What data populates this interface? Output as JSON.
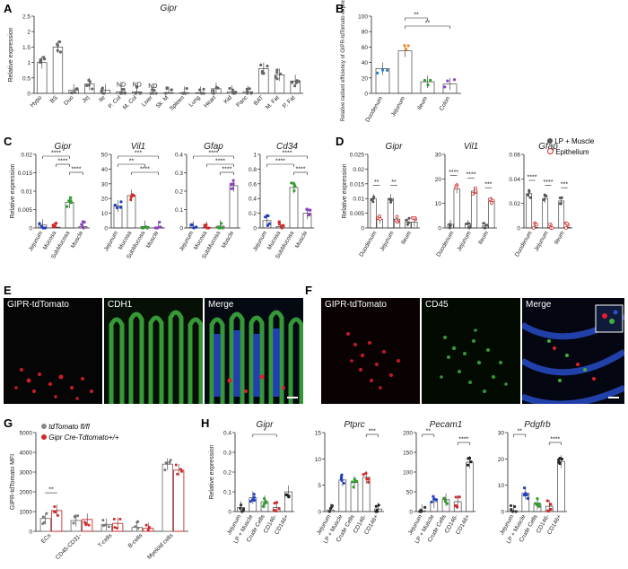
{
  "panel_letters": {
    "A": "A",
    "B": "B",
    "C": "C",
    "D": "D",
    "E": "E",
    "F": "F",
    "G": "G",
    "H": "H"
  },
  "colors": {
    "grey": "#777777",
    "blue": "#1f3fbf",
    "red": "#d42a2a",
    "green": "#2f9e2f",
    "orange": "#f08a24",
    "purple": "#8e3fbf",
    "micro_red": "#e0202a",
    "micro_green": "#3fb03f",
    "micro_blue": "#2a4fd0"
  },
  "chart_data": [
    {
      "id": "A",
      "type": "bar",
      "title": "Gipr",
      "ylabel": "Relative expression",
      "ylim": [
        0,
        2.5
      ],
      "yticks": [
        0,
        0.5,
        1.0,
        1.5,
        2.0,
        2.5
      ],
      "categories": [
        "Hypo",
        "BS",
        "Duo",
        "Jej",
        "Ile",
        "P. Col",
        "M. Col",
        "Liver",
        "Sk. M",
        "Spleen",
        "Lung",
        "Heart",
        "Kid",
        "Panc",
        "BAT",
        "M. Fat",
        "P. Fat"
      ],
      "values": [
        1.0,
        1.5,
        0.1,
        0.3,
        0.1,
        0.05,
        0.05,
        0.0,
        0.02,
        0.02,
        0.02,
        0.15,
        0.05,
        0.05,
        0.8,
        0.6,
        0.4
      ],
      "annotations": [
        {
          "category": "P. Col",
          "text": "ND"
        },
        {
          "category": "M. Col",
          "text": "ND"
        },
        {
          "category": "Liver",
          "text": "ND"
        }
      ]
    },
    {
      "id": "B",
      "type": "bar",
      "ylabel": "Relative radiant efficiency of GIPR-tdTomato expression",
      "ylim": [
        0,
        100
      ],
      "yticks": [
        0,
        20,
        40,
        60,
        80,
        100
      ],
      "categories": [
        "Duodenum",
        "Jejunum",
        "Ileum",
        "Colon"
      ],
      "values": [
        32,
        55,
        15,
        12
      ],
      "point_colors": [
        "#2a7fd4",
        "#f08a24",
        "#2f9e2f",
        "#8e3fbf"
      ],
      "significance": [
        {
          "from": "Jejunum",
          "to": "Ileum",
          "text": "**"
        },
        {
          "from": "Jejunum",
          "to": "Colon",
          "text": "**"
        }
      ]
    },
    {
      "id": "C1",
      "type": "bar",
      "title": "Gipr",
      "ylabel": "Relative expression",
      "ylim": [
        0,
        0.02
      ],
      "yticks": [
        0,
        0.005,
        0.01,
        0.015,
        0.02
      ],
      "categories": [
        "Jejunum",
        "Mucosa",
        "SubMucosa",
        "Muscle"
      ],
      "values": [
        0.0008,
        0.0002,
        0.007,
        0.0004
      ],
      "significance": [
        {
          "from": "Jejunum",
          "to": "SubMucosa",
          "text": "****"
        },
        {
          "from": "Mucosa",
          "to": "SubMucosa",
          "text": "****"
        },
        {
          "from": "SubMucosa",
          "to": "Muscle",
          "text": "****"
        }
      ]
    },
    {
      "id": "C2",
      "type": "bar",
      "title": "Vil1",
      "ylim": [
        0,
        50
      ],
      "yticks": [
        0,
        10,
        20,
        30,
        40,
        50
      ],
      "categories": [
        "Jejunum",
        "Mucosa",
        "SubMucosa",
        "Muscle"
      ],
      "values": [
        15,
        22,
        1,
        0.5
      ],
      "significance": [
        {
          "from": "Jejunum",
          "to": "Muscle",
          "text": "***"
        },
        {
          "from": "Jejunum",
          "to": "SubMucosa",
          "text": "**"
        },
        {
          "from": "Mucosa",
          "to": "Muscle",
          "text": "****"
        }
      ]
    },
    {
      "id": "C3",
      "type": "bar",
      "title": "Gfap",
      "ylim": [
        0,
        0.4
      ],
      "yticks": [
        0,
        0.1,
        0.2,
        0.3,
        0.4
      ],
      "categories": [
        "Jejunum",
        "Mucosa",
        "SubMucosa",
        "Muscle"
      ],
      "values": [
        0.005,
        0.003,
        0.01,
        0.23
      ],
      "significance": [
        {
          "from": "Jejunum",
          "to": "Muscle",
          "text": "****"
        },
        {
          "from": "Mucosa",
          "to": "Muscle",
          "text": "****"
        },
        {
          "from": "SubMucosa",
          "to": "Muscle",
          "text": "****"
        }
      ]
    },
    {
      "id": "C4",
      "type": "bar",
      "title": "Cd34",
      "ylim": [
        0,
        1.0
      ],
      "yticks": [
        0,
        0.2,
        0.4,
        0.6,
        0.8,
        1.0
      ],
      "categories": [
        "Jejunum",
        "Mucosa",
        "SubMucosa",
        "Muscle"
      ],
      "values": [
        0.1,
        0.02,
        0.55,
        0.2
      ],
      "significance": [
        {
          "from": "Jejunum",
          "to": "Muscle",
          "text": "****"
        },
        {
          "from": "Jejunum",
          "to": "SubMucosa",
          "text": "****"
        },
        {
          "from": "SubMucosa",
          "to": "Muscle",
          "text": "****"
        }
      ]
    },
    {
      "id": "D1",
      "type": "bar",
      "title": "Gipr",
      "ylabel": "Relative expression",
      "ylim": [
        0,
        0.025
      ],
      "yticks": [
        0,
        0.005,
        0.01,
        0.015,
        0.02,
        0.025
      ],
      "categories": [
        "Duodenum",
        "Jejunum",
        "Ileum"
      ],
      "series": [
        {
          "name": "LP + Muscle",
          "values": [
            0.01,
            0.01,
            0.002
          ]
        },
        {
          "name": "Epithelium",
          "values": [
            0.003,
            0.003,
            0.002
          ]
        }
      ],
      "significance": [
        {
          "category": "Duodenum",
          "text": "**"
        },
        {
          "category": "Jejunum",
          "text": "**"
        }
      ]
    },
    {
      "id": "D2",
      "type": "bar",
      "title": "Vil1",
      "ylim": [
        0,
        30
      ],
      "yticks": [
        0,
        10,
        20,
        30
      ],
      "categories": [
        "Duodenum",
        "Jejunum",
        "Ileum"
      ],
      "series": [
        {
          "name": "LP + Muscle",
          "values": [
            1.5,
            1.5,
            0.8
          ]
        },
        {
          "name": "Epithelium",
          "values": [
            16,
            15,
            11
          ]
        }
      ],
      "significance": [
        {
          "category": "Duodenum",
          "text": "****"
        },
        {
          "category": "Jejunum",
          "text": "****"
        },
        {
          "category": "Ileum",
          "text": "***"
        }
      ]
    },
    {
      "id": "D3",
      "type": "bar",
      "title": "Gfap",
      "ylim": [
        0,
        0.06
      ],
      "yticks": [
        0,
        0.02,
        0.04,
        0.06
      ],
      "categories": [
        "Duodenum",
        "Jejunum",
        "Ileum"
      ],
      "series": [
        {
          "name": "LP + Muscle",
          "values": [
            0.028,
            0.024,
            0.022
          ]
        },
        {
          "name": "Epithelium",
          "values": [
            0.0005,
            0.0005,
            0.0005
          ]
        }
      ],
      "significance": [
        {
          "category": "Duodenum",
          "text": "****"
        },
        {
          "category": "Jejunum",
          "text": "****"
        },
        {
          "category": "Ileum",
          "text": "***"
        }
      ]
    },
    {
      "id": "G",
      "type": "bar",
      "ylabel": "GIPR-tdTomato MFI",
      "ylim": [
        0,
        5000
      ],
      "yticks": [
        0,
        1000,
        2000,
        3000,
        4000,
        5000
      ],
      "categories": [
        "ECs",
        "CD45-CD31-",
        "T-cells",
        "B-cells",
        "Myeloid cells"
      ],
      "series": [
        {
          "name": "tdTomato fl/fl",
          "values": [
            650,
            550,
            350,
            200,
            3400
          ]
        },
        {
          "name": "Gipr Cre-Tdtomato+/+",
          "values": [
            1050,
            600,
            400,
            150,
            3100
          ]
        }
      ],
      "significance": [
        {
          "category": "ECs",
          "text": "**"
        }
      ]
    },
    {
      "id": "H1",
      "type": "bar",
      "title": "Gipr",
      "ylabel": "Relative expression",
      "ylim": [
        0,
        0.4
      ],
      "yticks": [
        0,
        0.1,
        0.2,
        0.3,
        0.4
      ],
      "categories": [
        "Jejunum",
        "LP + Muscle",
        "Crude Cells",
        "CD146-",
        "CD146+"
      ],
      "values": [
        0.02,
        0.07,
        0.05,
        0.02,
        0.1
      ],
      "significance": [
        {
          "from": "LP + Muscle",
          "to": "CD146-",
          "text": "*"
        }
      ]
    },
    {
      "id": "H2",
      "type": "bar",
      "title": "Ptprc",
      "ylim": [
        0,
        15
      ],
      "yticks": [
        0,
        5,
        10,
        15
      ],
      "categories": [
        "Jejunum",
        "LP + Muscle",
        "Crude Cells",
        "CD146-",
        "CD146+"
      ],
      "values": [
        0.3,
        6,
        5.5,
        6.5,
        0.5
      ],
      "significance": [
        {
          "from": "CD146-",
          "to": "CD146+",
          "text": "***"
        }
      ]
    },
    {
      "id": "H3",
      "type": "bar",
      "title": "Pecam1",
      "ylim": [
        0,
        200
      ],
      "yticks": [
        0,
        50,
        100,
        150,
        200
      ],
      "categories": [
        "Jejunum",
        "LP + Muscle",
        "Crude Cells",
        "CD146-",
        "CD146+"
      ],
      "values": [
        2,
        25,
        30,
        25,
        125
      ],
      "significance": [
        {
          "from": "Jejunum",
          "to": "LP + Muscle",
          "text": "**"
        },
        {
          "from": "CD146-",
          "to": "CD146+",
          "text": "****"
        }
      ]
    },
    {
      "id": "H4",
      "type": "bar",
      "title": "Pdgfrb",
      "ylim": [
        0,
        30
      ],
      "yticks": [
        0,
        10,
        20,
        30
      ],
      "categories": [
        "Jejunum",
        "LP + Muscle",
        "Crude Cells",
        "CD146-",
        "CD146+"
      ],
      "values": [
        0.3,
        7,
        3,
        2,
        19
      ],
      "significance": [
        {
          "from": "Jejunum",
          "to": "LP + Muscle",
          "text": "**"
        },
        {
          "from": "CD146-",
          "to": "CD146+",
          "text": "****"
        }
      ]
    }
  ],
  "micrographs": {
    "E": [
      {
        "label": "GIPR-tdTomato"
      },
      {
        "label": "CDH1"
      },
      {
        "label": "Merge"
      }
    ],
    "F": [
      {
        "label": "GIPR-tdTomato"
      },
      {
        "label": "CD45"
      },
      {
        "label": "Merge"
      }
    ]
  }
}
